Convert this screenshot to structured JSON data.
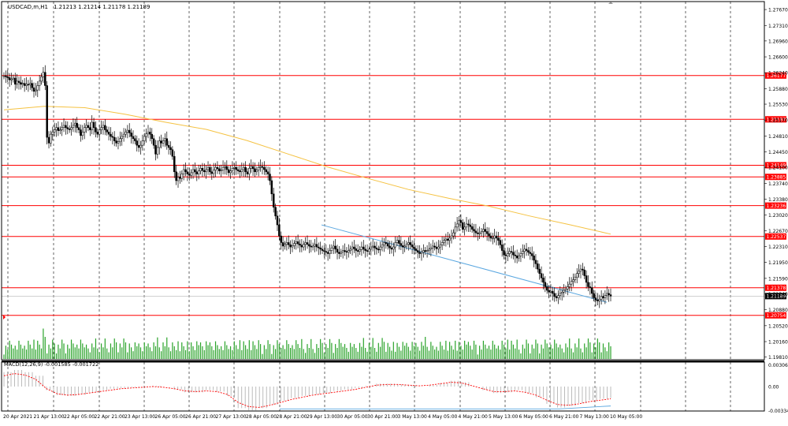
{
  "main": {
    "symbol_info": "USDCAD,m,H1",
    "ohlc": "1.21213 1.21214 1.21178 1.21189",
    "candles": [
      1.2617,
      1.2615,
      1.2613,
      1.2608,
      1.261,
      1.2612,
      1.2598,
      1.2605,
      1.2602,
      1.2598,
      1.26,
      1.2595,
      1.2598,
      1.2597,
      1.26,
      1.259,
      1.2582,
      1.2585,
      1.2595,
      1.2605,
      1.2615,
      1.2625,
      1.2595,
      1.2478,
      1.2465,
      1.2485,
      1.249,
      1.2495,
      1.25,
      1.2493,
      1.2495,
      1.25,
      1.2505,
      1.25,
      1.2497,
      1.2496,
      1.25,
      1.2505,
      1.251,
      1.25,
      1.2495,
      1.2482,
      1.249,
      1.25,
      1.2505,
      1.25,
      1.2495,
      1.2512,
      1.25,
      1.249,
      1.2485,
      1.2495,
      1.25,
      1.2505,
      1.2495,
      1.249,
      1.2485,
      1.248,
      1.2478,
      1.247,
      1.2465,
      1.2468,
      1.2475,
      1.248,
      1.2485,
      1.249,
      1.2494,
      1.2488,
      1.248,
      1.2475,
      1.247,
      1.246,
      1.2455,
      1.246,
      1.247,
      1.248,
      1.2486,
      1.249,
      1.2485,
      1.2475,
      1.246,
      1.244,
      1.2455,
      1.247,
      1.2465,
      1.247,
      1.2475,
      1.246,
      1.2455,
      1.245,
      1.2435,
      1.24,
      1.238,
      1.2388,
      1.2385,
      1.2395,
      1.2405,
      1.24,
      1.2395,
      1.2392,
      1.2398,
      1.2405,
      1.24,
      1.2395,
      1.2402,
      1.2408,
      1.2403,
      1.24,
      1.2405,
      1.241,
      1.24,
      1.2396,
      1.2404,
      1.241,
      1.2407,
      1.2402,
      1.2404,
      1.241,
      1.2412,
      1.2405,
      1.2398,
      1.2402,
      1.2408,
      1.241,
      1.2405,
      1.2402,
      1.24,
      1.2405,
      1.241,
      1.24,
      1.2395,
      1.2408,
      1.2412,
      1.2407,
      1.24,
      1.2404,
      1.241,
      1.2412,
      1.241,
      1.2405,
      1.24,
      1.2395,
      1.238,
      1.235,
      1.232,
      1.23,
      1.228,
      1.2255,
      1.224,
      1.2232,
      1.2236,
      1.224,
      1.2235,
      1.223,
      1.2233,
      1.2238,
      1.2242,
      1.2237,
      1.2234,
      1.223,
      1.2236,
      1.224,
      1.2236,
      1.2232,
      1.223,
      1.2232,
      1.2236,
      1.223,
      1.2228,
      1.2225,
      1.2222,
      1.222,
      1.2218,
      1.2215,
      1.2222,
      1.2228,
      1.2232,
      1.2225,
      1.2218,
      1.2215,
      1.2218,
      1.2222,
      1.222,
      1.2218,
      1.2222,
      1.2225,
      1.223,
      1.2226,
      1.2222,
      1.222,
      1.2224,
      1.223,
      1.2225,
      1.2222,
      1.222,
      1.2225,
      1.223,
      1.2232,
      1.2228,
      1.2225,
      1.2224,
      1.223,
      1.2235,
      1.224,
      1.2238,
      1.2232,
      1.2228,
      1.2225,
      1.223,
      1.224,
      1.2245,
      1.2238,
      1.2233,
      1.223,
      1.2232,
      1.2236,
      1.224,
      1.2235,
      1.223,
      1.2226,
      1.2222,
      1.2218,
      1.2215,
      1.2218,
      1.2222,
      1.222,
      1.2222,
      1.2225,
      1.2228,
      1.2232,
      1.223,
      1.2226,
      1.223,
      1.2235,
      1.224,
      1.2245,
      1.2248,
      1.2245,
      1.225,
      1.2255,
      1.2262,
      1.2275,
      1.2282,
      1.229,
      1.2285,
      1.227,
      1.2275,
      1.2282,
      1.228,
      1.2276,
      1.227,
      1.2266,
      1.2262,
      1.226,
      1.2262,
      1.2265,
      1.227,
      1.2265,
      1.226,
      1.2255,
      1.225,
      1.225,
      1.2255,
      1.225,
      1.2245,
      1.2235,
      1.2222,
      1.2212,
      1.221,
      1.2215,
      1.222,
      1.2218,
      1.2212,
      1.221,
      1.2205,
      1.221,
      1.2215,
      1.222,
      1.2225,
      1.2222,
      1.2218,
      1.2215,
      1.221,
      1.22,
      1.2192,
      1.218,
      1.217,
      1.216,
      1.215,
      1.214,
      1.2132,
      1.2128,
      1.213,
      1.2125,
      1.2118,
      1.2115,
      1.212,
      1.2125,
      1.2128,
      1.2132,
      1.2135,
      1.214,
      1.2146,
      1.2152,
      1.2156,
      1.2162,
      1.217,
      1.2175,
      1.218,
      1.2178,
      1.2165,
      1.215,
      1.214,
      1.2138,
      1.2125,
      1.2115,
      1.211,
      1.2108,
      1.2112,
      1.2118,
      1.2115,
      1.212,
      1.2125,
      1.2122,
      1.2119
    ],
    "ma_line": [
      1.254,
      1.2548,
      1.2545,
      1.253,
      1.2512,
      1.2496,
      1.2471,
      1.2441,
      1.2411,
      1.2385,
      1.236,
      1.234,
      1.2322,
      1.23,
      1.228,
      1.2259
    ],
    "trendline": [
      1.228,
      1.2105
    ],
    "hlines": [
      {
        "price": 1.26177,
        "label": "1.26177"
      },
      {
        "price": 1.25187,
        "label": "1.25187"
      },
      {
        "price": 1.24149,
        "label": "1.24149"
      },
      {
        "price": 1.23885,
        "label": "1.23885"
      },
      {
        "price": 1.23236,
        "label": "1.23236"
      },
      {
        "price": 1.22537,
        "label": "1.22537"
      },
      {
        "price": 1.21378,
        "label": "1.21378"
      },
      {
        "price": 1.20754,
        "label": "1.20754"
      }
    ],
    "current_price": {
      "price": 1.21189,
      "label": "1.21189"
    },
    "axis_ticks": [
      "1.27670",
      "1.27310",
      "1.26960",
      "1.26600",
      "1.26240",
      "1.25880",
      "1.25530",
      "1.25170",
      "1.24810",
      "1.24450",
      "1.24100",
      "1.23740",
      "1.23380",
      "1.23020",
      "1.22670",
      "1.22310",
      "1.21950",
      "1.21590",
      "1.21240",
      "1.20880",
      "1.20520",
      "1.20160",
      "1.19810"
    ]
  },
  "macd": {
    "label": "MACD(12,26,9) -0.001585 -0.001722",
    "axis_ticks": [
      "0.00306",
      "0.00",
      "-0.003344"
    ],
    "histogram": [
      0.002,
      0.0023,
      0.002,
      0.0015,
      -0.0005,
      -0.0012,
      -0.0013,
      -0.0011,
      -0.0008,
      -0.0005,
      -0.0003,
      -0.0002,
      -0.0001,
      0.0,
      0.0001,
      0.0,
      -0.0004,
      -0.0008,
      -0.0008,
      -0.0005,
      -0.0007,
      -0.0013,
      -0.003,
      -0.0033,
      -0.003,
      -0.0025,
      -0.002,
      -0.0016,
      -0.0013,
      -0.0011,
      -0.0009,
      -0.0006,
      -0.0004,
      -0.0002,
      0.0001,
      0.0004,
      0.0004,
      0.0003,
      0.0002,
      0.0,
      0.0002,
      0.0005,
      0.0008,
      0.0006,
      0.0,
      -0.0005,
      -0.0009,
      -0.0008,
      -0.0005,
      -0.0009,
      -0.0015,
      -0.0024,
      -0.0029,
      -0.0027,
      -0.0023,
      -0.0019,
      -0.0017,
      -0.0016
    ],
    "signal": [
      0.0015,
      0.0018,
      0.0016,
      0.001,
      -0.0003,
      -0.001,
      -0.0012,
      -0.0011,
      -0.0009,
      -0.0007,
      -0.0005,
      -0.0003,
      -0.0002,
      -0.0001,
      0.0,
      -0.0001,
      -0.0003,
      -0.0006,
      -0.0007,
      -0.0006,
      -0.0007,
      -0.0011,
      -0.0022,
      -0.0028,
      -0.0029,
      -0.0026,
      -0.0022,
      -0.0018,
      -0.0015,
      -0.0012,
      -0.001,
      -0.0008,
      -0.0006,
      -0.0004,
      -0.0001,
      0.0002,
      0.0003,
      0.0003,
      0.0002,
      0.0001,
      0.0002,
      0.0004,
      0.0006,
      0.0005,
      0.0001,
      -0.0003,
      -0.0007,
      -0.0007,
      -0.0006,
      -0.0008,
      -0.0012,
      -0.0019,
      -0.0025,
      -0.0026,
      -0.0024,
      -0.0021,
      -0.0019,
      -0.0017
    ],
    "trendline": [
      -0.0031,
      -0.0031,
      -0.0027
    ]
  },
  "time_axis": [
    "20 Apr 2021",
    "21 Apr 13:00",
    "22 Apr 05:00",
    "22 Apr 21:00",
    "23 Apr 13:00",
    "26 Apr 05:00",
    "26 Apr 21:00",
    "27 Apr 13:00",
    "28 Apr 05:00",
    "28 Apr 21:00",
    "29 Apr 13:00",
    "30 Apr 05:00",
    "30 Apr 21:00",
    "3 May 13:00",
    "4 May 05:00",
    "4 May 21:00",
    "5 May 13:00",
    "6 May 05:00",
    "6 May 21:00",
    "7 May 13:00",
    "10 May 05:00"
  ],
  "colors": {
    "bull": "#000000",
    "bear": "#000000",
    "grid": "#000000",
    "hline": "#ff0000",
    "ma": "#f5c242",
    "trend": "#5aa7e0",
    "volume": "#2aa32a",
    "macd_hist": "#b4b4b4",
    "macd_signal": "#ff0000",
    "axis_text": "#000000"
  }
}
